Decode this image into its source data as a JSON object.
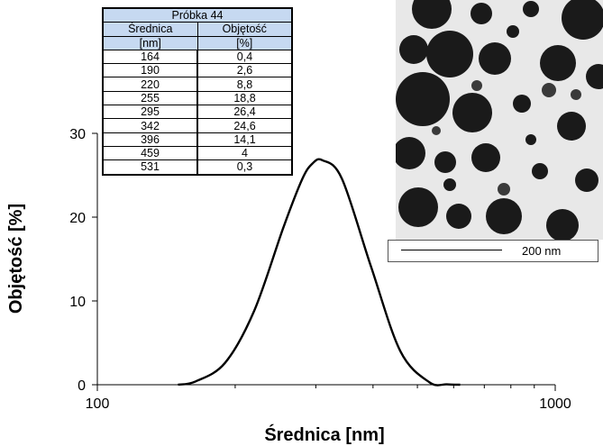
{
  "chart_data": {
    "type": "line",
    "xscale": "log",
    "xlim": [
      100,
      1000
    ],
    "ylim": [
      0,
      30
    ],
    "xlabel": "Średnica [nm]",
    "ylabel": "Objętość [%]",
    "x_ticks": [
      100,
      1000
    ],
    "x_tick_labels": [
      "100",
      "1000"
    ],
    "y_ticks": [
      0,
      10,
      20,
      30
    ],
    "y_tick_labels": [
      "0",
      "10",
      "20",
      "30"
    ],
    "grid": false,
    "series": [
      {
        "name": "Próbka 44",
        "x": [
          150,
          164,
          190,
          220,
          255,
          280,
          295,
          310,
          342,
          396,
          459,
          531,
          580,
          620
        ],
        "y": [
          0,
          0.4,
          2.6,
          8.8,
          18.8,
          24.5,
          26.4,
          26.8,
          24.6,
          14.1,
          4,
          0.3,
          0.05,
          0
        ]
      }
    ]
  },
  "table": {
    "title": "Próbka 44",
    "headers": [
      "Średnica",
      "Objętość"
    ],
    "units": [
      "[nm]",
      "[%]"
    ],
    "rows": [
      [
        "164",
        "0,4"
      ],
      [
        "190",
        "2,6"
      ],
      [
        "220",
        "8,8"
      ],
      [
        "255",
        "18,8"
      ],
      [
        "295",
        "26,4"
      ],
      [
        "342",
        "24,6"
      ],
      [
        "396",
        "14,1"
      ],
      [
        "459",
        "4"
      ],
      [
        "531",
        "0,3"
      ]
    ]
  },
  "inset": {
    "scale_label": "200 nm"
  }
}
